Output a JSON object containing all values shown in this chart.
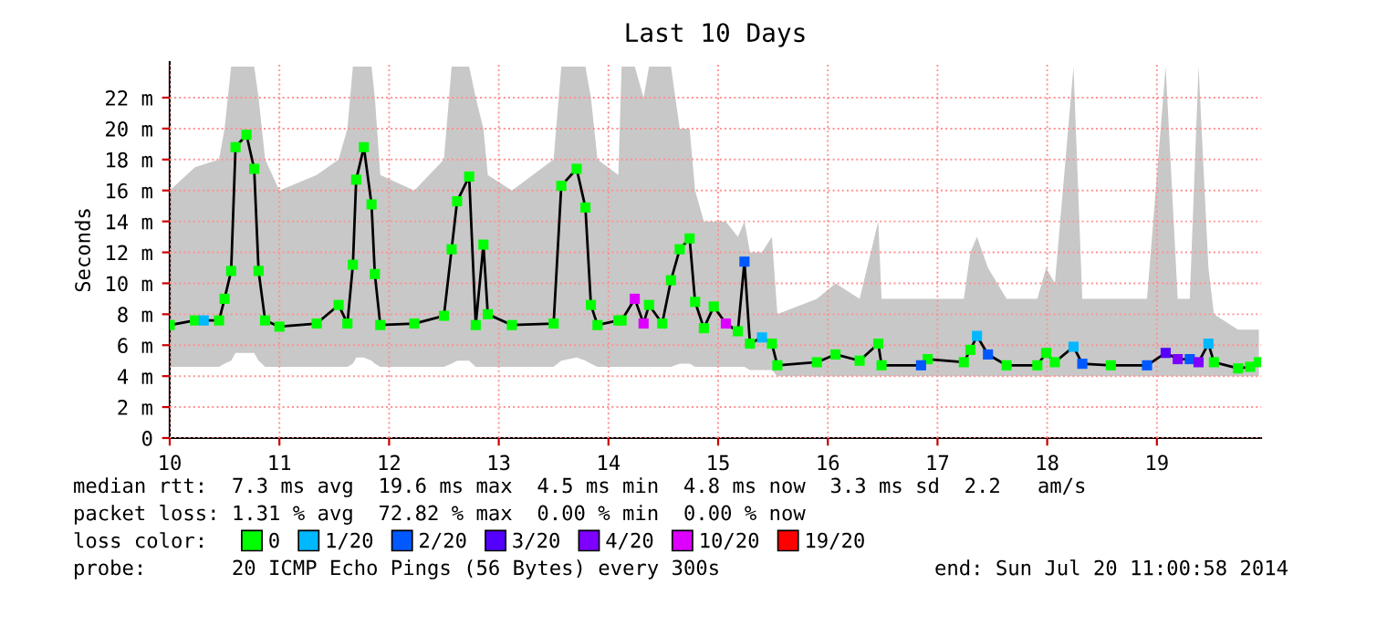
{
  "chart_data": {
    "type": "line",
    "title": "Last 10 Days",
    "ylabel": "Seconds",
    "legend_title": "loss color:",
    "legend": "bottom",
    "grid": true,
    "xlim": [
      10,
      19.95
    ],
    "xticks": [
      10,
      11,
      12,
      13,
      14,
      15,
      16,
      17,
      18,
      19
    ],
    "ylim": [
      0,
      24.3
    ],
    "yticks": [
      0,
      {
        "value": 2,
        "label": "2 m"
      },
      {
        "value": 4,
        "label": "4 m"
      },
      {
        "value": 6,
        "label": "6 m"
      },
      {
        "value": 8,
        "label": "8 m"
      },
      {
        "value": 10,
        "label": "10 m"
      },
      {
        "value": 12,
        "label": "12 m"
      },
      {
        "value": 14,
        "label": "14 m"
      },
      {
        "value": 16,
        "label": "16 m"
      },
      {
        "value": 18,
        "label": "18 m"
      },
      {
        "value": 20,
        "label": "20 m"
      },
      {
        "value": 22,
        "label": "22 m"
      }
    ],
    "series": [
      {
        "color": "#000000",
        "marker": "none",
        "x": [
          10.0,
          10.23,
          10.45,
          10.5,
          10.56,
          10.6,
          10.7,
          10.77,
          10.81,
          10.87,
          11.0,
          11.34,
          11.54,
          11.62,
          11.67,
          11.7,
          11.77,
          11.84,
          11.87,
          11.92,
          12.23,
          12.5,
          12.57,
          12.62,
          12.73,
          12.79,
          12.86,
          12.9,
          13.12,
          13.5,
          13.57,
          13.71,
          13.79,
          13.84,
          13.9,
          14.09,
          14.12,
          14.24,
          14.32,
          14.37,
          14.49,
          14.57,
          14.65,
          14.74,
          14.79,
          14.87,
          14.96,
          15.07,
          15.18,
          15.24,
          15.29,
          15.4,
          15.49,
          15.54,
          15.9,
          16.07,
          16.29,
          16.46,
          16.49,
          16.85,
          16.91,
          17.24,
          17.3,
          17.36,
          17.46,
          17.63,
          17.91,
          17.99,
          18.07,
          18.24,
          18.32,
          18.58,
          18.91,
          19.08,
          19.19,
          19.3,
          19.38,
          19.47,
          19.52,
          19.74,
          19.85,
          19.93
        ],
        "values": [
          7.3,
          7.6,
          7.6,
          9.0,
          10.8,
          18.8,
          19.6,
          17.4,
          10.8,
          7.6,
          7.2,
          7.4,
          8.6,
          7.4,
          11.2,
          16.7,
          18.8,
          15.1,
          10.6,
          7.3,
          7.4,
          7.9,
          12.2,
          15.3,
          16.9,
          7.3,
          12.5,
          8.0,
          7.3,
          7.4,
          16.3,
          17.4,
          14.9,
          8.6,
          7.3,
          7.6,
          7.6,
          9.0,
          7.4,
          8.6,
          7.4,
          10.2,
          12.2,
          12.9,
          8.8,
          7.1,
          8.5,
          7.4,
          6.9,
          11.4,
          6.1,
          6.5,
          6.1,
          4.7,
          4.9,
          5.4,
          5.0,
          6.1,
          4.7,
          4.7,
          5.1,
          4.9,
          5.7,
          6.6,
          5.4,
          4.7,
          4.7,
          5.5,
          4.9,
          5.9,
          4.8,
          4.7,
          4.7,
          5.5,
          5.1,
          5.1,
          4.9,
          6.1,
          4.9,
          4.5,
          4.6,
          4.9
        ],
        "lower": [
          4.6,
          4.6,
          4.6,
          4.8,
          5.0,
          5.5,
          5.5,
          5.5,
          5.0,
          4.6,
          4.6,
          4.6,
          4.6,
          4.6,
          4.8,
          5.2,
          5.2,
          5.0,
          4.8,
          4.6,
          4.6,
          4.6,
          4.8,
          5.0,
          5.0,
          4.6,
          4.6,
          4.6,
          4.6,
          4.6,
          5.0,
          5.2,
          5.0,
          4.8,
          4.6,
          4.6,
          4.6,
          4.6,
          4.6,
          4.6,
          4.6,
          4.6,
          4.8,
          4.8,
          4.6,
          4.6,
          4.6,
          4.6,
          4.6,
          4.6,
          4.4,
          4.4,
          4.4,
          4.0,
          4.0,
          4.0,
          4.0,
          4.0,
          4.0,
          4.0,
          4.0,
          4.0,
          4.0,
          4.0,
          4.0,
          4.0,
          4.0,
          4.0,
          4.0,
          4.0,
          4.0,
          4.0,
          4.0,
          4.0,
          4.0,
          4.0,
          4.0,
          4.0,
          4.0,
          4.0,
          4.0,
          4.0
        ],
        "upper": [
          16.0,
          17.5,
          18.0,
          20.0,
          24.0,
          24.0,
          24.0,
          24.0,
          22.0,
          18.0,
          16.0,
          17.0,
          18.0,
          20.0,
          24.0,
          24.0,
          24.0,
          24.0,
          22.0,
          17.0,
          16.0,
          18.0,
          24.0,
          24.0,
          24.0,
          22.0,
          20.0,
          17.0,
          16.0,
          18.0,
          24.0,
          24.0,
          24.0,
          22.0,
          18.0,
          17.0,
          24.0,
          24.0,
          22.0,
          24.0,
          24.0,
          24.0,
          20.0,
          20.0,
          16.0,
          14.0,
          14.0,
          14.0,
          13.0,
          14.0,
          12.0,
          12.0,
          13.0,
          8.0,
          9.0,
          10.0,
          9.0,
          14.0,
          9.0,
          9.0,
          9.0,
          9.0,
          12.0,
          13.0,
          11.0,
          9.0,
          9.0,
          11.0,
          10.0,
          24.0,
          9.0,
          9.0,
          9.0,
          24.0,
          9.0,
          9.0,
          24.0,
          11.0,
          8.0,
          7.0,
          7.0,
          7.0
        ]
      },
      {
        "type": "scatter",
        "name": "0",
        "color": "#00ff00",
        "marker": "square",
        "x": [
          10.0,
          10.23,
          10.45,
          10.5,
          10.56,
          10.6,
          10.7,
          10.77,
          10.81,
          10.87,
          11.0,
          11.34,
          11.54,
          11.62,
          11.67,
          11.7,
          11.77,
          11.84,
          11.87,
          11.92,
          12.23,
          12.5,
          12.57,
          12.62,
          12.73,
          12.79,
          12.86,
          12.9,
          13.12,
          13.5,
          13.57,
          13.71,
          13.79,
          13.84,
          13.9,
          14.09,
          14.12,
          14.37,
          14.49,
          14.57,
          14.65,
          14.74,
          14.79,
          14.87,
          14.96,
          15.18,
          15.29,
          15.49,
          15.54,
          15.9,
          16.07,
          16.29,
          16.46,
          16.49,
          16.91,
          17.24,
          17.3,
          17.63,
          17.91,
          17.99,
          18.07,
          18.58,
          19.52,
          19.74,
          19.85,
          19.93
        ],
        "values": [
          7.3,
          7.6,
          7.6,
          9.0,
          10.8,
          18.8,
          19.6,
          17.4,
          10.8,
          7.6,
          7.2,
          7.4,
          8.6,
          7.4,
          11.2,
          16.7,
          18.8,
          15.1,
          10.6,
          7.3,
          7.4,
          7.9,
          12.2,
          15.3,
          16.9,
          7.3,
          12.5,
          8.0,
          7.3,
          7.4,
          16.3,
          17.4,
          14.9,
          8.6,
          7.3,
          7.6,
          7.6,
          8.6,
          7.4,
          10.2,
          12.2,
          12.9,
          8.8,
          7.1,
          8.5,
          6.9,
          6.1,
          6.1,
          4.7,
          4.9,
          5.4,
          5.0,
          6.1,
          4.7,
          5.1,
          4.9,
          5.7,
          4.7,
          4.7,
          5.5,
          4.9,
          4.7,
          4.9,
          4.5,
          4.6,
          4.9
        ]
      },
      {
        "type": "scatter",
        "name": "1/20",
        "color": "#00b8ff",
        "marker": "square",
        "x": [
          10.31,
          15.4,
          17.36,
          18.24,
          19.47
        ],
        "values": [
          7.6,
          6.5,
          6.6,
          5.9,
          6.1
        ]
      },
      {
        "type": "scatter",
        "name": "2/20",
        "color": "#0059ff",
        "marker": "square",
        "x": [
          15.24,
          16.85,
          17.46,
          18.32,
          18.91,
          19.3
        ],
        "values": [
          11.4,
          4.7,
          5.4,
          4.8,
          4.7,
          5.1
        ]
      },
      {
        "type": "scatter",
        "name": "3/20",
        "color": "#5500ff",
        "marker": "square",
        "x": [
          19.08
        ],
        "values": [
          5.5
        ]
      },
      {
        "type": "scatter",
        "name": "4/20",
        "color": "#7e00ff",
        "marker": "square",
        "x": [
          19.19,
          19.38
        ],
        "values": [
          5.1,
          4.9
        ]
      },
      {
        "type": "scatter",
        "name": "10/20",
        "color": "#dd00ff",
        "marker": "square",
        "x": [
          14.24,
          14.32,
          15.07
        ],
        "values": [
          9.0,
          7.4,
          7.4
        ]
      },
      {
        "type": "scatter",
        "name": "19/20",
        "color": "#ff0000",
        "marker": "square"
      }
    ],
    "annotations": [
      "median rtt:  7.3 ms avg  19.6 ms max  4.5 ms min  4.8 ms now  3.3 ms sd  2.2   am/s",
      "packet loss: 1.31 % avg  72.82 % max  0.00 % min  0.00 % now",
      "probe:       20 ICMP Echo Pings (56 Bytes) every 300s",
      "end: Sun Jul 20 11:00:58 2014"
    ]
  }
}
